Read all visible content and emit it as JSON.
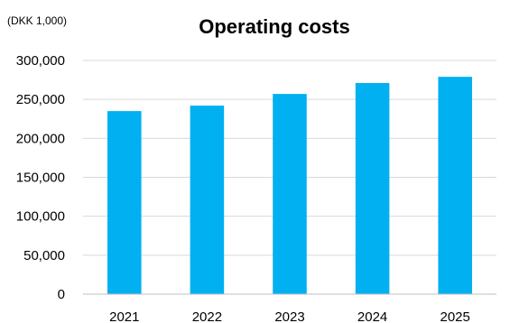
{
  "chart_data": {
    "type": "bar",
    "title": "Operating costs",
    "unit_label": "(DKK 1,000)",
    "categories": [
      "2021",
      "2022",
      "2023",
      "2024",
      "2025"
    ],
    "values": [
      235000,
      242000,
      257000,
      271000,
      279000
    ],
    "ylim": [
      0,
      300000
    ],
    "yticks": [
      0,
      50000,
      100000,
      150000,
      200000,
      250000,
      300000
    ],
    "ytick_labels": [
      "0",
      "50,000",
      "100,000",
      "150,000",
      "200,000",
      "250,000",
      "300,000"
    ],
    "grid": true,
    "legend": "none",
    "bar_color": "#00b0f0"
  }
}
